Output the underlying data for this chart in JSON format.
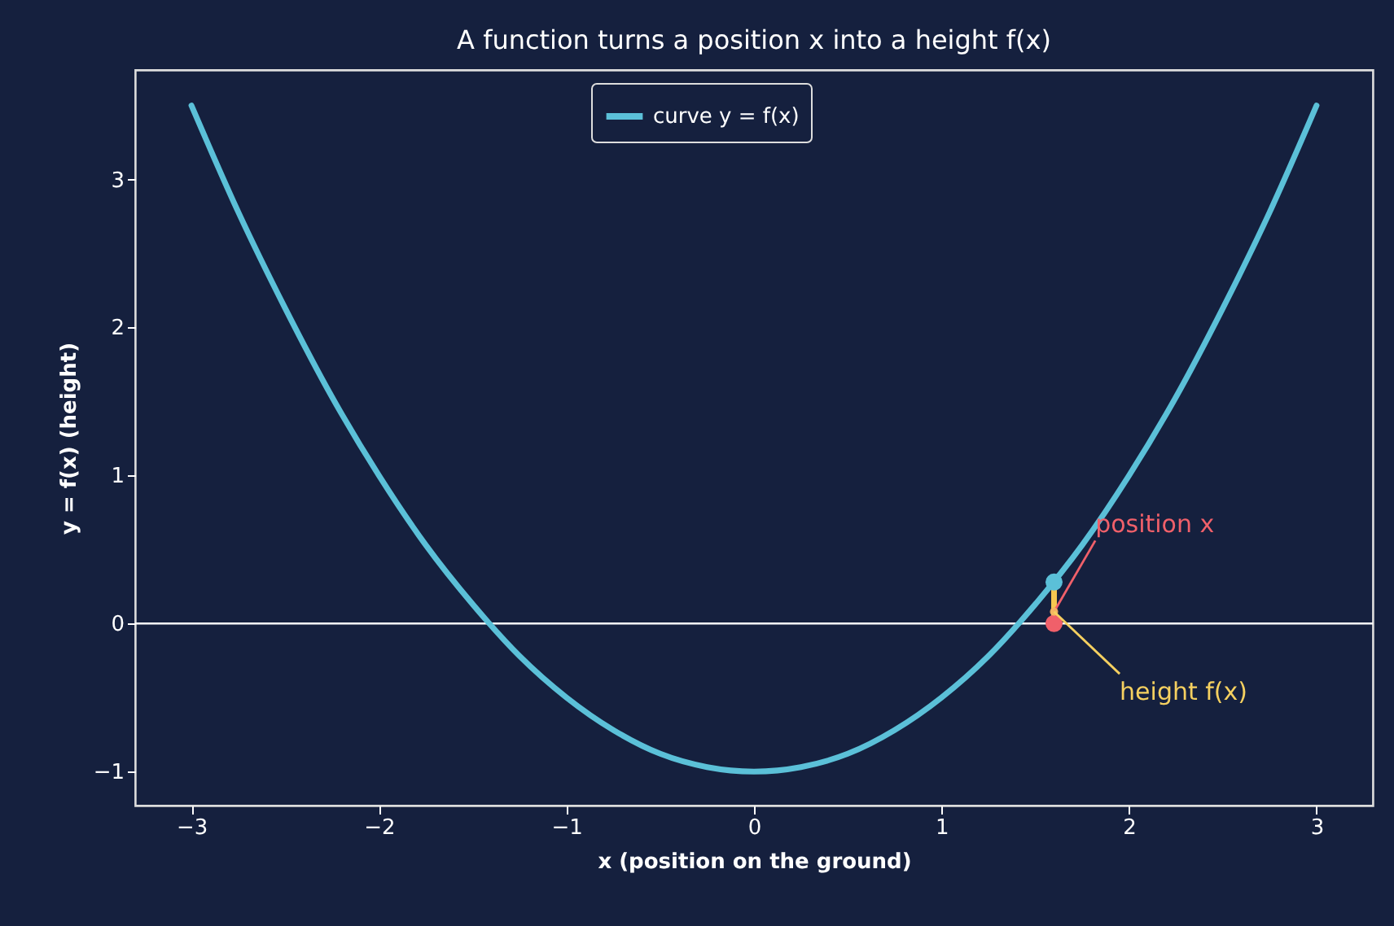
{
  "chart_data": {
    "type": "line",
    "title": "A function turns a position x into a height f(x)",
    "xlabel": "x  (position on the ground)",
    "ylabel": "y = f(x)  (height)",
    "xlim": [
      -3.3,
      3.3
    ],
    "ylim": [
      -1.23,
      3.74
    ],
    "xticks": [
      -3,
      -2,
      -1,
      0,
      1,
      2,
      3
    ],
    "yticks": [
      -1,
      0,
      1,
      2,
      3
    ],
    "grid": false,
    "legend": "top",
    "series": [
      {
        "name": "curve y = f(x)",
        "color": "#5bc0d8",
        "marker": "none",
        "x": [
          -3,
          -2.75,
          -2.5,
          -2.25,
          -2,
          -1.75,
          -1.5,
          -1.25,
          -1,
          -0.75,
          -0.5,
          -0.25,
          0,
          0.25,
          0.5,
          0.75,
          1,
          1.25,
          1.5,
          1.75,
          2,
          2.25,
          2.5,
          2.75,
          3
        ],
        "values": [
          3.5,
          2.78,
          2.13,
          1.53,
          1.0,
          0.53,
          0.13,
          -0.22,
          -0.5,
          -0.72,
          -0.88,
          -0.97,
          -1.0,
          -0.97,
          -0.88,
          -0.72,
          -0.5,
          -0.22,
          0.13,
          0.53,
          1.0,
          1.53,
          2.13,
          2.78,
          3.5
        ]
      },
      {
        "color": "#f5c850",
        "marker": "none",
        "x": [
          1.6,
          1.6
        ],
        "values": [
          0,
          0.28
        ]
      },
      {
        "type": "scatter",
        "color": "#5bc0d8",
        "marker": "circle",
        "x": [
          1.6
        ],
        "values": [
          0.28
        ]
      },
      {
        "type": "scatter",
        "color": "#f0606a",
        "marker": "circle",
        "x": [
          1.6
        ],
        "values": [
          0
        ]
      }
    ],
    "ref_lines": [
      {
        "axis": "y",
        "value": 0,
        "color": "#ffffff"
      }
    ],
    "annotations": [
      {
        "text": "position x",
        "x": 1.6,
        "y": 0.08
      },
      {
        "text": "height f(x)",
        "x": 1.6,
        "y": 0.08
      }
    ]
  }
}
